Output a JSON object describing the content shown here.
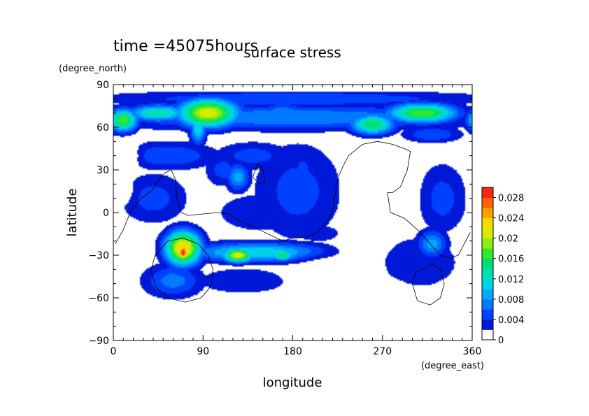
{
  "chart_data": {
    "type": "heatmap",
    "time_label": "time =45075hours",
    "title": "surface stress",
    "xlabel": "longitude",
    "ylabel": "latitude",
    "xunit": "(degree_east)",
    "yunit": "(degree_north)",
    "xlim": [
      0,
      360
    ],
    "ylim": [
      -90,
      90
    ],
    "xticks": [
      "0",
      "90",
      "180",
      "270",
      "360"
    ],
    "yticks": [
      "90",
      "60",
      "30",
      "0",
      "−30",
      "−60",
      "−90"
    ],
    "colorbar": {
      "range": [
        0,
        0.03
      ],
      "labels": [
        "0.028",
        "0.024",
        "0.02",
        "0.016",
        "0.012",
        "0.008",
        "0.004",
        "0"
      ],
      "levels": [
        0,
        0.002,
        0.004,
        0.006,
        0.008,
        0.01,
        0.012,
        0.014,
        0.016,
        0.018,
        0.02,
        0.022,
        0.024,
        0.026,
        0.028,
        0.03
      ],
      "colors": [
        "#ffffff",
        "#0018d8",
        "#0040ff",
        "#0078ff",
        "#00aaff",
        "#00d2e8",
        "#00e0b0",
        "#00e070",
        "#30e830",
        "#90ec10",
        "#d8ec00",
        "#ffd800",
        "#ffa000",
        "#ff6000",
        "#f02810"
      ]
    },
    "field_blobs": [
      {
        "lon": 180,
        "lat": 80,
        "rlon": 200,
        "rlat": 6,
        "v": 0.006
      },
      {
        "lon": 180,
        "lat": 67,
        "rlon": 200,
        "rlat": 9,
        "v": 0.008
      },
      {
        "lon": 180,
        "lat": 50,
        "rlon": 200,
        "rlat": 6,
        "v": 0.002
      },
      {
        "lon": 180,
        "lat": 62,
        "rlon": 200,
        "rlat": 4,
        "v": 0.003
      },
      {
        "lon": 10,
        "lat": 65,
        "rlon": 14,
        "rlat": 8,
        "v": 0.018
      },
      {
        "lon": 45,
        "lat": 70,
        "rlon": 30,
        "rlat": 6,
        "v": 0.014
      },
      {
        "lon": 95,
        "lat": 70,
        "rlon": 30,
        "rlat": 10,
        "v": 0.022
      },
      {
        "lon": 85,
        "lat": 60,
        "rlon": 8,
        "rlat": 12,
        "v": 0.012
      },
      {
        "lon": 170,
        "lat": 72,
        "rlon": 25,
        "rlat": 5,
        "v": 0.007
      },
      {
        "lon": 260,
        "lat": 62,
        "rlon": 22,
        "rlat": 7,
        "v": 0.016
      },
      {
        "lon": 310,
        "lat": 70,
        "rlon": 35,
        "rlat": 7,
        "v": 0.018
      },
      {
        "lon": 320,
        "lat": 55,
        "rlon": 30,
        "rlat": 6,
        "v": 0.006
      },
      {
        "lon": 55,
        "lat": 40,
        "rlon": 50,
        "rlat": 10,
        "v": 0.006
      },
      {
        "lon": 140,
        "lat": 40,
        "rlon": 40,
        "rlat": 10,
        "v": 0.005
      },
      {
        "lon": 185,
        "lat": 15,
        "rlon": 45,
        "rlat": 35,
        "v": 0.005
      },
      {
        "lon": 125,
        "lat": 25,
        "rlon": 12,
        "rlat": 10,
        "v": 0.009
      },
      {
        "lon": 190,
        "lat": 25,
        "rlon": 10,
        "rlat": 18,
        "v": 0.006
      },
      {
        "lon": 110,
        "lat": 30,
        "rlon": 18,
        "rlat": 12,
        "v": 0.005
      },
      {
        "lon": 40,
        "lat": 10,
        "rlon": 35,
        "rlat": 18,
        "v": 0.005
      },
      {
        "lon": 150,
        "lat": 0,
        "rlon": 50,
        "rlat": 15,
        "v": 0.004
      },
      {
        "lon": 330,
        "lat": 10,
        "rlon": 25,
        "rlat": 25,
        "v": 0.005
      },
      {
        "lon": 255,
        "lat": -10,
        "rlon": 35,
        "rlat": 8,
        "v": 0.003
      },
      {
        "lon": 70,
        "lat": -25,
        "rlon": 18,
        "rlat": 12,
        "v": 0.024
      },
      {
        "lon": 70,
        "lat": -28,
        "rlon": 6,
        "rlat": 6,
        "v": 0.03
      },
      {
        "lon": 145,
        "lat": -28,
        "rlon": 70,
        "rlat": 7,
        "v": 0.012
      },
      {
        "lon": 125,
        "lat": -30,
        "rlon": 15,
        "rlat": 5,
        "v": 0.022
      },
      {
        "lon": 170,
        "lat": -30,
        "rlon": 12,
        "rlat": 4,
        "v": 0.016
      },
      {
        "lon": 60,
        "lat": -48,
        "rlon": 30,
        "rlat": 12,
        "v": 0.007
      },
      {
        "lon": 130,
        "lat": -48,
        "rlon": 50,
        "rlat": 10,
        "v": 0.004
      },
      {
        "lon": 320,
        "lat": -22,
        "rlon": 15,
        "rlat": 10,
        "v": 0.009
      },
      {
        "lon": 305,
        "lat": -35,
        "rlon": 45,
        "rlat": 20,
        "v": 0.004
      },
      {
        "lon": 210,
        "lat": -15,
        "rlon": 40,
        "rlat": 8,
        "v": 0.003
      }
    ],
    "voids": [
      {
        "lon": 270,
        "lat": 15,
        "rlon": 32,
        "rlat": 18
      },
      {
        "lon": 250,
        "lat": -20,
        "rlon": 28,
        "rlat": 14
      },
      {
        "lon": 225,
        "lat": -40,
        "rlon": 45,
        "rlat": 12
      },
      {
        "lon": 200,
        "lat": -75,
        "rlon": 150,
        "rlat": 10
      },
      {
        "lon": 30,
        "lat": -75,
        "rlon": 40,
        "rlat": 10
      },
      {
        "lon": 345,
        "lat": -78,
        "rlon": 30,
        "rlat": 12
      },
      {
        "lon": 15,
        "lat": 40,
        "rlon": 15,
        "rlat": 12
      },
      {
        "lon": 10,
        "lat": 15,
        "rlon": 12,
        "rlat": 10
      },
      {
        "lon": 6,
        "lat": -45,
        "rlon": 8,
        "rlat": 15
      },
      {
        "lon": 270,
        "lat": -55,
        "rlon": 25,
        "rlat": 8
      },
      {
        "lon": 290,
        "lat": 10,
        "rlon": 12,
        "rlat": 15
      }
    ],
    "coastlines": [
      [
        [
          2,
          -22
        ],
        [
          10,
          -12
        ],
        [
          18,
          2
        ],
        [
          28,
          10
        ],
        [
          38,
          15
        ],
        [
          45,
          22
        ],
        [
          52,
          28
        ],
        [
          58,
          30
        ],
        [
          62,
          24
        ],
        [
          64,
          10
        ],
        [
          68,
          0
        ],
        [
          75,
          -2
        ],
        [
          90,
          -1
        ],
        [
          105,
          0
        ],
        [
          115,
          -1
        ],
        [
          125,
          -5
        ],
        [
          140,
          -10
        ],
        [
          155,
          -15
        ],
        [
          170,
          -20
        ],
        [
          180,
          -18
        ],
        [
          195,
          -17
        ],
        [
          205,
          -14
        ],
        [
          215,
          -6
        ],
        [
          220,
          2
        ],
        [
          222,
          10
        ],
        [
          225,
          24
        ],
        [
          230,
          32
        ],
        [
          236,
          40
        ],
        [
          250,
          48
        ],
        [
          265,
          50
        ],
        [
          280,
          48
        ],
        [
          292,
          45
        ],
        [
          298,
          43
        ],
        [
          295,
          30
        ],
        [
          288,
          18
        ],
        [
          280,
          14
        ],
        [
          275,
          14
        ],
        [
          278,
          0
        ],
        [
          292,
          -4
        ],
        [
          305,
          -12
        ],
        [
          318,
          -22
        ],
        [
          328,
          -30
        ],
        [
          338,
          -32
        ],
        [
          346,
          -30
        ],
        [
          352,
          -22
        ],
        [
          358,
          -14
        ]
      ],
      [
        [
          55,
          -20
        ],
        [
          70,
          -18
        ],
        [
          85,
          -22
        ],
        [
          95,
          -30
        ],
        [
          100,
          -40
        ],
        [
          98,
          -52
        ],
        [
          88,
          -60
        ],
        [
          72,
          -63
        ],
        [
          55,
          -60
        ],
        [
          42,
          -52
        ],
        [
          38,
          -40
        ],
        [
          42,
          -30
        ],
        [
          55,
          -20
        ]
      ],
      [
        [
          145,
          35
        ],
        [
          150,
          30
        ],
        [
          152,
          22
        ],
        [
          146,
          20
        ],
        [
          140,
          25
        ],
        [
          145,
          35
        ]
      ],
      [
        [
          310,
          -40
        ],
        [
          320,
          -36
        ],
        [
          328,
          -40
        ],
        [
          332,
          -50
        ],
        [
          328,
          -60
        ],
        [
          318,
          -65
        ],
        [
          305,
          -62
        ],
        [
          300,
          -50
        ],
        [
          303,
          -42
        ],
        [
          310,
          -40
        ]
      ]
    ]
  }
}
